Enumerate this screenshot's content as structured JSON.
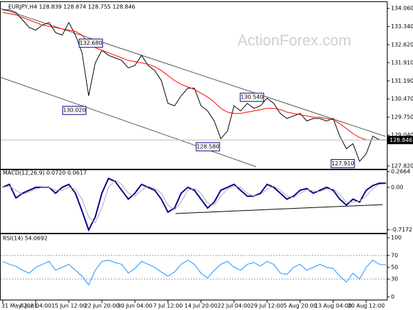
{
  "chart_data": [
    {
      "type": "line",
      "title": "EURJPY,H4 128.839 128.874 128.755 128.846",
      "watermark": "ActionForex.com",
      "ylim": [
        127.68,
        134.31
      ],
      "yticks": [
        {
          "value": 134.06,
          "label": "134.060"
        },
        {
          "value": 133.34,
          "label": "133.340"
        },
        {
          "value": 132.62,
          "label": "132.620"
        },
        {
          "value": 131.91,
          "label": "131.910"
        },
        {
          "value": 131.19,
          "label": "131.190"
        },
        {
          "value": 130.47,
          "label": "130.470"
        },
        {
          "value": 129.75,
          "label": "129.750"
        },
        {
          "value": 129.04,
          "label": "129.040"
        },
        {
          "value": 127.82,
          "label": "127.820"
        }
      ],
      "last_price": 128.846,
      "annotations": [
        {
          "value": 132.68,
          "label": "132.680"
        },
        {
          "value": 130.02,
          "label": "130.020"
        },
        {
          "value": 128.58,
          "label": "128.580"
        },
        {
          "value": 130.54,
          "label": "130.540"
        },
        {
          "value": 127.91,
          "label": "127.910"
        }
      ],
      "series": [
        {
          "name": "EURJPY",
          "color": "#000000",
          "values": [
            134.0,
            134.0,
            133.9,
            133.6,
            133.3,
            133.2,
            133.4,
            133.5,
            133.1,
            133.0,
            133.5,
            133.0,
            132.3,
            130.6,
            131.9,
            132.4,
            132.2,
            132.1,
            132.0,
            131.7,
            131.8,
            132.2,
            131.8,
            131.6,
            131.2,
            130.3,
            130.2,
            130.6,
            130.9,
            130.9,
            130.2,
            130.0,
            129.6,
            128.9,
            129.2,
            130.2,
            130.0,
            130.3,
            130.1,
            130.2,
            130.5,
            130.3,
            129.9,
            129.7,
            129.8,
            129.9,
            129.6,
            129.7,
            129.7,
            129.6,
            129.7,
            129.0,
            128.5,
            128.7,
            128.0,
            128.3,
            129.0,
            128.85,
            128.85
          ]
        },
        {
          "name": "MA",
          "color": "#ff0000",
          "values": [
            133.9,
            133.85,
            133.8,
            133.7,
            133.6,
            133.5,
            133.4,
            133.35,
            133.3,
            133.25,
            133.2,
            133.15,
            133.0,
            132.7,
            132.5,
            132.4,
            132.3,
            132.2,
            132.1,
            132.0,
            131.95,
            131.9,
            131.85,
            131.75,
            131.6,
            131.4,
            131.2,
            131.05,
            130.95,
            130.85,
            130.7,
            130.55,
            130.35,
            130.1,
            129.95,
            129.9,
            129.9,
            129.95,
            130.0,
            130.05,
            130.1,
            130.1,
            130.05,
            129.95,
            129.9,
            129.85,
            129.8,
            129.75,
            129.75,
            129.7,
            129.65,
            129.5,
            129.3,
            129.1,
            128.95,
            128.85,
            128.85,
            128.85,
            128.85
          ]
        }
      ]
    },
    {
      "type": "line",
      "title": "MACD(12,26,9) 0.0720 0.0617",
      "ylim": [
        -0.78,
        0.29
      ],
      "yticks": [
        0.2664,
        {
          "value": 0,
          "label": "0.00"
        },
        -0.7172
      ],
      "series": [
        {
          "name": "MACD",
          "color": "#00008b",
          "values": [
            0.0,
            0.05,
            -0.18,
            -0.1,
            -0.05,
            0.0,
            0.0,
            0.0,
            -0.1,
            0.0,
            0.05,
            -0.1,
            -0.4,
            -0.72,
            -0.5,
            -0.1,
            0.15,
            0.1,
            -0.05,
            -0.2,
            -0.1,
            0.05,
            0.0,
            -0.05,
            -0.2,
            -0.42,
            -0.35,
            -0.1,
            0.0,
            -0.05,
            -0.2,
            -0.35,
            -0.25,
            -0.05,
            0.0,
            0.05,
            -0.05,
            -0.15,
            -0.15,
            -0.1,
            0.05,
            0.0,
            -0.1,
            -0.2,
            -0.15,
            -0.05,
            -0.02,
            -0.1,
            -0.05,
            0.0,
            -0.05,
            -0.2,
            -0.3,
            -0.2,
            -0.25,
            -0.05,
            0.03,
            0.07,
            0.07
          ]
        },
        {
          "name": "Signal",
          "color": "#a9a9a9",
          "values": [
            0.0,
            0.02,
            -0.05,
            -0.12,
            -0.08,
            -0.03,
            0.0,
            0.0,
            -0.05,
            -0.05,
            0.0,
            -0.03,
            -0.2,
            -0.5,
            -0.6,
            -0.35,
            0.0,
            0.12,
            0.05,
            -0.1,
            -0.15,
            -0.05,
            0.02,
            -0.02,
            -0.1,
            -0.3,
            -0.38,
            -0.25,
            -0.05,
            -0.02,
            -0.1,
            -0.27,
            -0.3,
            -0.15,
            -0.03,
            0.02,
            0.0,
            -0.1,
            -0.15,
            -0.12,
            -0.03,
            0.02,
            -0.05,
            -0.15,
            -0.17,
            -0.1,
            -0.04,
            -0.06,
            -0.07,
            -0.03,
            -0.03,
            -0.12,
            -0.25,
            -0.25,
            -0.23,
            -0.15,
            -0.02,
            0.05,
            0.06
          ]
        }
      ]
    },
    {
      "type": "line",
      "title": "RSI(14) 54.0692",
      "ylim": [
        -6,
        106
      ],
      "yticks": [
        100,
        70,
        50,
        30,
        0
      ],
      "levels": [
        70,
        30
      ],
      "categories": [
        "31 May 2021",
        null,
        null,
        null,
        null,
        "8 Jun 04:00",
        null,
        null,
        null,
        null,
        "15 Jun 12:00",
        null,
        null,
        null,
        null,
        "22 Jun 20:00",
        null,
        null,
        null,
        null,
        "30 Jun 04:00",
        null,
        null,
        null,
        null,
        "7 Jul 12:00",
        null,
        null,
        null,
        null,
        "14 Jul 20:00",
        null,
        null,
        null,
        null,
        "22 Jul 04:00",
        null,
        null,
        null,
        null,
        "29 Jul 12:00",
        null,
        null,
        null,
        null,
        "5 Aug 20:00",
        null,
        null,
        null,
        null,
        "13 Aug 04:00",
        null,
        null,
        null,
        null,
        "20 Aug 12:00",
        null,
        null,
        null
      ],
      "series": [
        {
          "name": "RSI",
          "color": "#1e90ff",
          "values": [
            60,
            55,
            52,
            45,
            40,
            50,
            55,
            60,
            45,
            50,
            55,
            45,
            35,
            20,
            45,
            60,
            62,
            58,
            55,
            40,
            48,
            60,
            55,
            50,
            42,
            35,
            42,
            55,
            62,
            55,
            40,
            32,
            45,
            55,
            60,
            50,
            45,
            55,
            58,
            52,
            60,
            55,
            40,
            38,
            50,
            55,
            45,
            50,
            55,
            50,
            48,
            35,
            25,
            40,
            30,
            50,
            62,
            55,
            54
          ]
        }
      ]
    }
  ]
}
